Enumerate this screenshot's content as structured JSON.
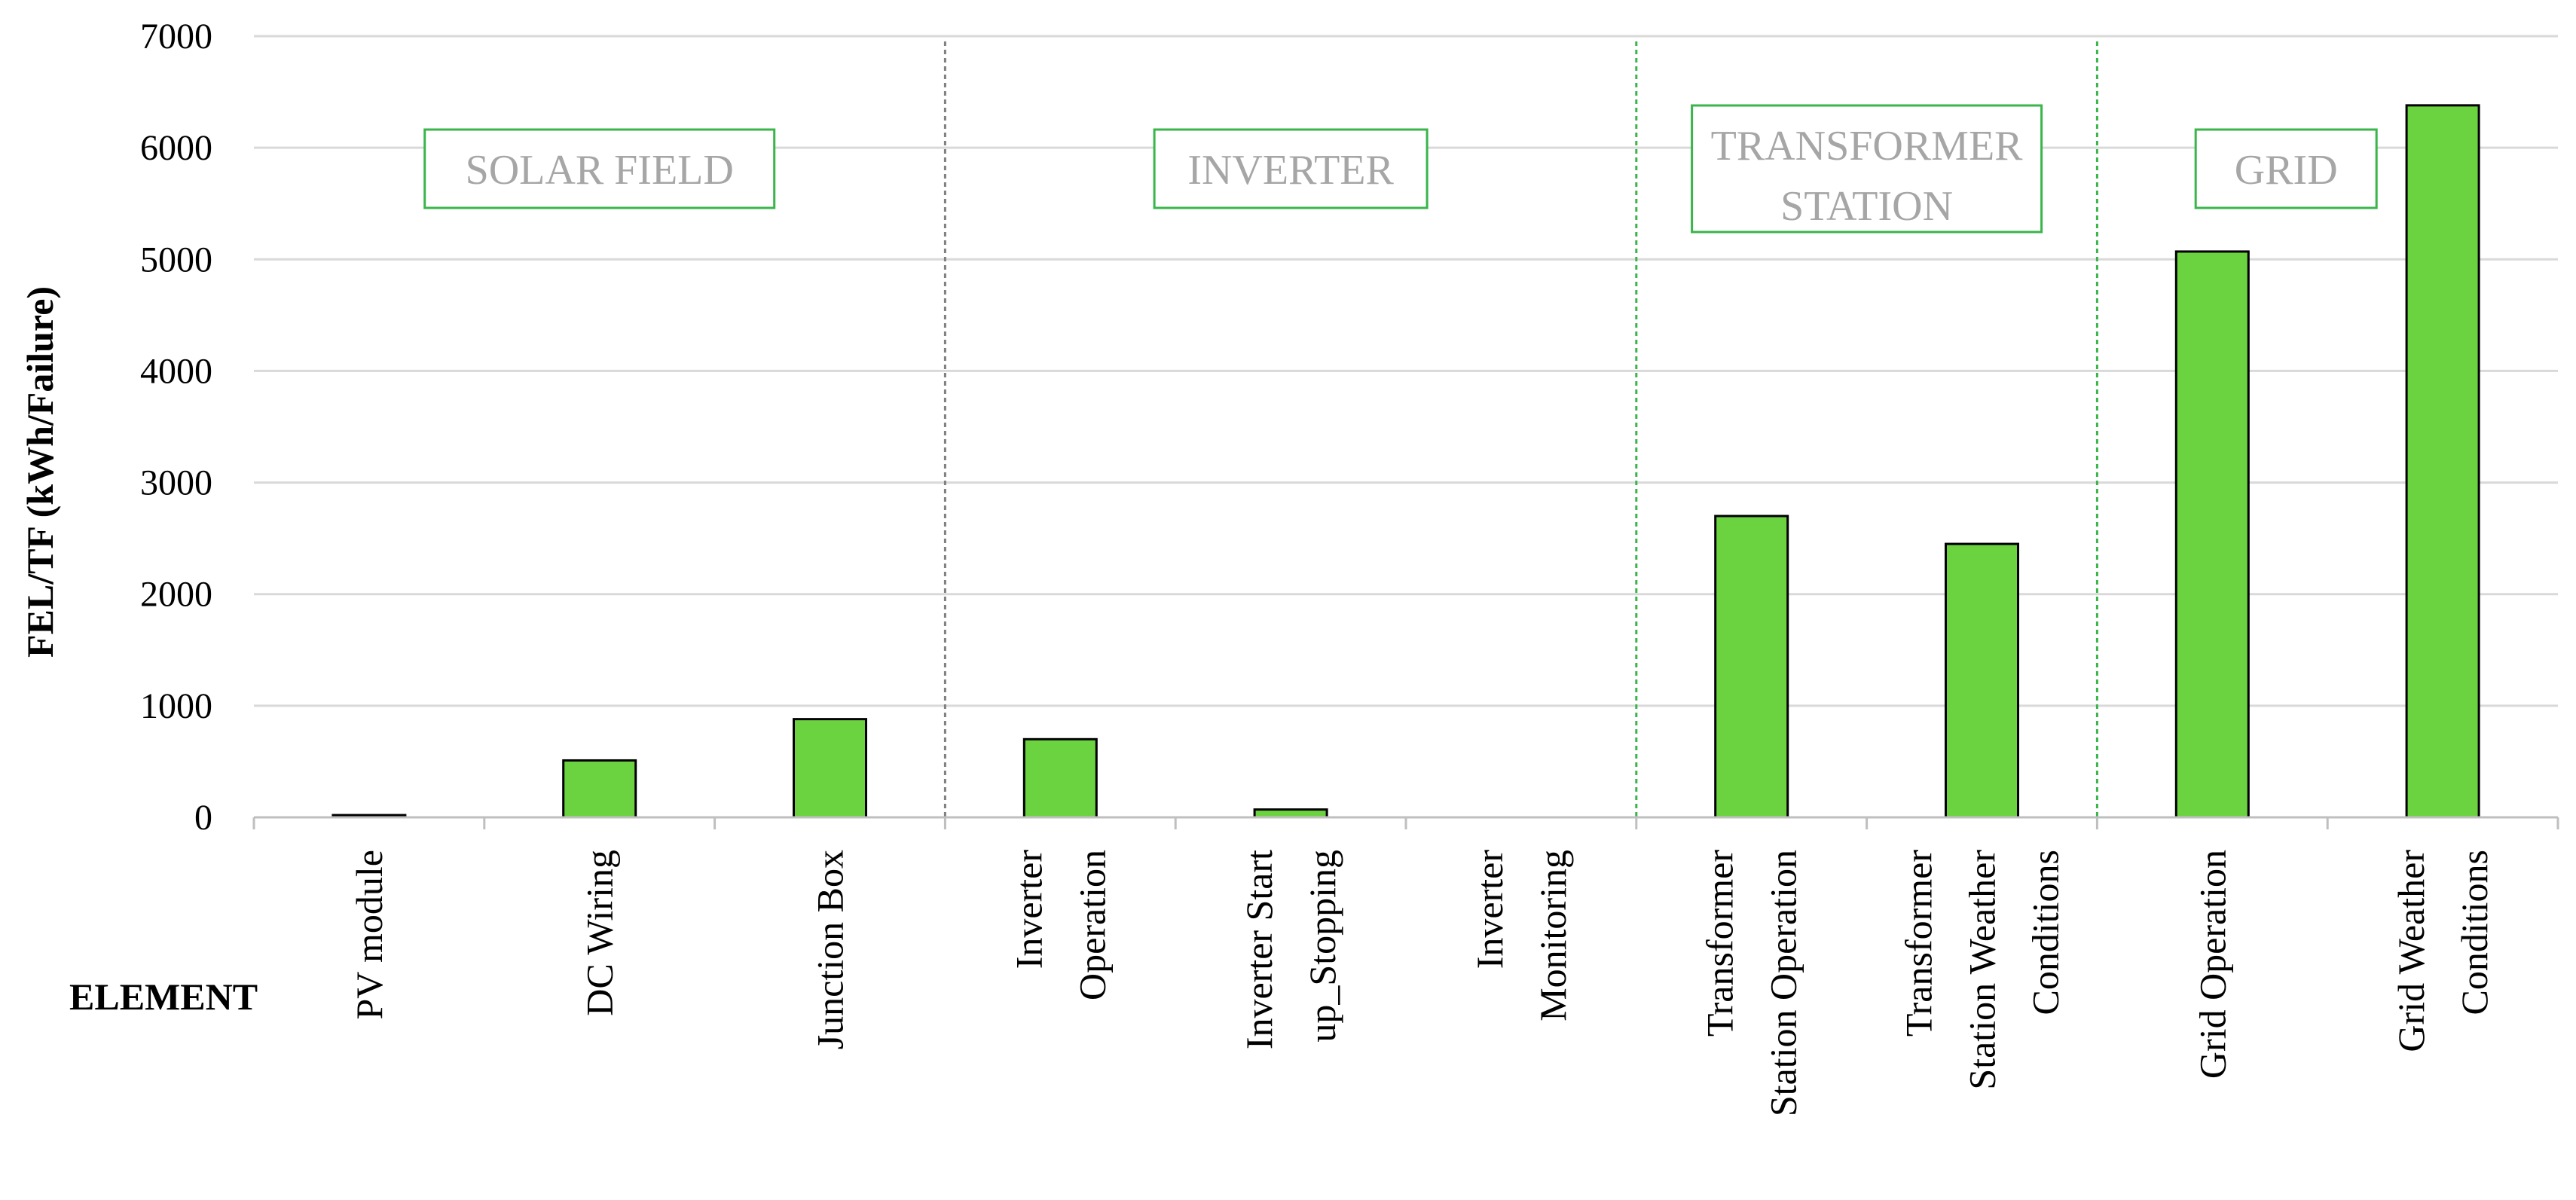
{
  "chart_data": {
    "type": "bar",
    "ylabel": "FEL/TF (kWh/Failure)",
    "xlabel": "ELEMENT",
    "ylim": [
      0,
      7000
    ],
    "yticks": [
      0,
      1000,
      2000,
      3000,
      4000,
      5000,
      6000,
      7000
    ],
    "grid": true,
    "categories": [
      [
        "PV module"
      ],
      [
        "DC Wiring"
      ],
      [
        "Junction Box"
      ],
      [
        "Inverter",
        "Operation"
      ],
      [
        "Inverter Start",
        "up_Stopping"
      ],
      [
        "Inverter",
        "Monitoring"
      ],
      [
        "Transformer",
        "Station Operation"
      ],
      [
        "Transformer",
        "Station Weather",
        "Conditions"
      ],
      [
        "Grid Operation"
      ],
      [
        "Grid Weather",
        "Conditions"
      ]
    ],
    "values": [
      20,
      510,
      880,
      700,
      70,
      0,
      2700,
      2450,
      5070,
      6380
    ],
    "bar_color": "#6bd33f",
    "groups": [
      {
        "label": [
          "SOLAR FIELD"
        ],
        "start": 0,
        "end": 2
      },
      {
        "label": [
          "INVERTER"
        ],
        "start": 3,
        "end": 5
      },
      {
        "label": [
          "TRANSFORMER",
          "STATION"
        ],
        "start": 6,
        "end": 7
      },
      {
        "label": [
          "GRID"
        ],
        "start": 8,
        "end": 9
      }
    ],
    "group_box_color": "#39b54a",
    "separator_colors": [
      "#808080",
      "#39b54a",
      "#39b54a"
    ]
  }
}
